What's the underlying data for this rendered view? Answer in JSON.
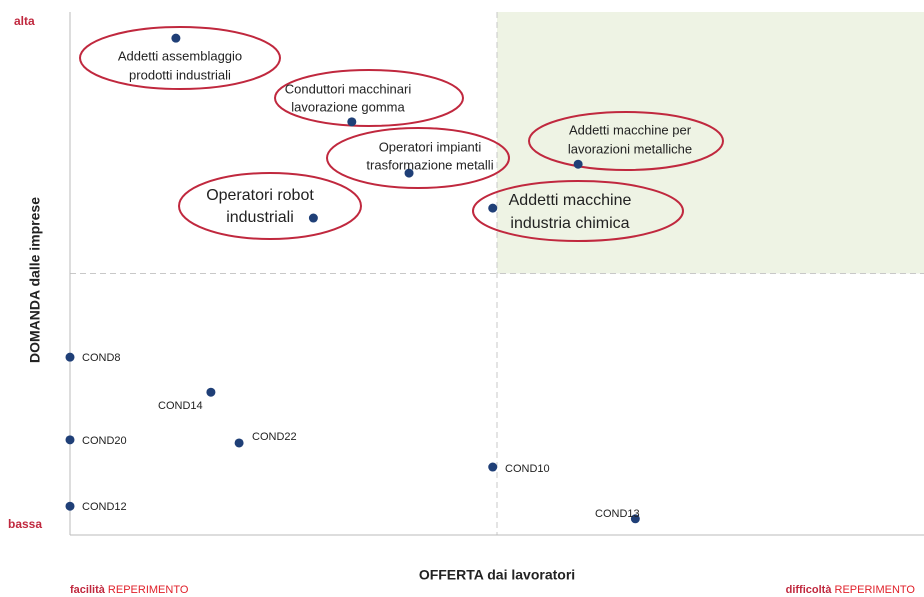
{
  "chart_data": {
    "type": "scatter",
    "x_label": "OFFERTA dai lavoratori",
    "y_label": "DOMANDA dalle imprese",
    "y_high": "alta",
    "y_low": "bassa",
    "corner_left": {
      "bold": "facilità",
      "rest": "REPERIMENTO"
    },
    "corner_right": {
      "bold": "difficoltà",
      "rest": "REPERIMENTO"
    },
    "xlim": [
      0,
      100
    ],
    "ylim": [
      0,
      100
    ],
    "dividers": {
      "x": 50,
      "y": 50
    },
    "color": "#1f3f77",
    "highlight_color": "#eef3e4",
    "circle_color": "#c0283e",
    "labels": [
      [
        "Addetti assemblaggio",
        "prodotti industriali"
      ],
      [
        "Conduttori macchinari",
        "lavorazione gomma"
      ],
      [
        "Operatori impianti",
        "trasformazione metalli"
      ],
      [
        "Operatori robot",
        "industriali"
      ],
      [
        "Addetti macchine per",
        "lavorazioni metalliche"
      ],
      [
        "Addetti macchine",
        "industria chimica"
      ],
      [
        "COND8"
      ],
      [
        "COND14"
      ],
      [
        "COND20"
      ],
      [
        "COND22"
      ],
      [
        "COND10"
      ],
      [
        "COND12"
      ],
      [
        "COND13"
      ]
    ],
    "x": [
      12.4,
      33.0,
      39.7,
      28.5,
      59.5,
      49.5,
      0,
      16.5,
      0,
      19.8,
      49.5,
      0,
      66.2
    ],
    "y": [
      95.0,
      79.0,
      69.2,
      60.6,
      70.9,
      62.5,
      34.0,
      27.3,
      18.2,
      17.6,
      13.0,
      5.5,
      3.1
    ]
  }
}
